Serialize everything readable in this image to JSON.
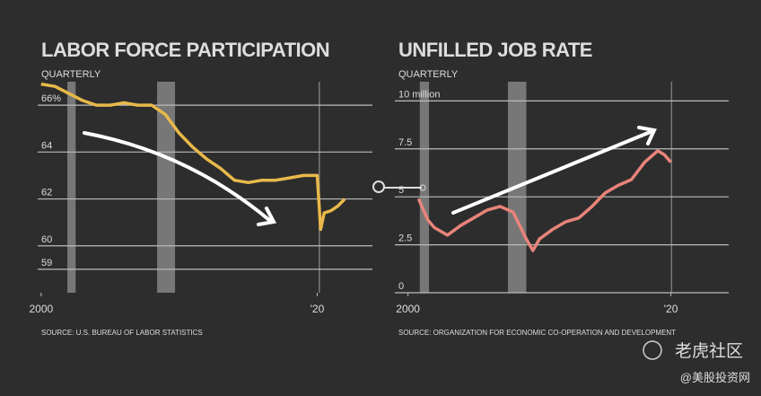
{
  "chart_data": [
    {
      "type": "line",
      "title": "LABOR FORCE PARTICIPATION",
      "subtitle": "QUARTERLY",
      "source": "SOURCE: U.S. BUREAU OF LABOR STATISTICS",
      "x": [
        2000,
        2001,
        2002,
        2003,
        2004,
        2005,
        2006,
        2007,
        2008,
        2009,
        2010,
        2011,
        2012,
        2013,
        2014,
        2015,
        2016,
        2017,
        2018,
        2019,
        2020,
        2020.25,
        2020.5,
        2021,
        2021.5,
        2022
      ],
      "series": [
        {
          "name": "Labor force participation",
          "color": "#e8b94a",
          "values": [
            66.9,
            66.8,
            66.5,
            66.2,
            66.0,
            66.0,
            66.1,
            66.0,
            66.0,
            65.6,
            64.8,
            64.2,
            63.7,
            63.3,
            62.8,
            62.7,
            62.8,
            62.8,
            62.9,
            63.0,
            63.0,
            60.7,
            61.4,
            61.5,
            61.7,
            62.0
          ]
        }
      ],
      "recessions": [
        [
          2001.9,
          2002.5
        ],
        [
          2008.4,
          2009.7
        ],
        [
          2020.1,
          2020.2
        ]
      ],
      "xlim": [
        1999.75,
        2024
      ],
      "xticks": [
        2000,
        {
          "value": 2020,
          "label": "'20"
        }
      ],
      "ylim": [
        58,
        67
      ],
      "yticks": [
        59,
        60,
        62,
        64,
        {
          "value": 66,
          "label": "66%"
        }
      ],
      "grid": true
    },
    {
      "type": "line",
      "title": "UNFILLED JOB RATE",
      "subtitle": "QUARTERLY",
      "source": "SOURCE: ORGANIZATION FOR ECONOMIC CO-OPERATION AND DEVELOPMENT",
      "x": [
        2000.8,
        2001.5,
        2002,
        2003,
        2004,
        2005,
        2006,
        2007,
        2008,
        2009,
        2009.5,
        2010,
        2011,
        2012,
        2013,
        2014,
        2015,
        2016,
        2017,
        2018,
        2019,
        2019.5,
        2020
      ],
      "series": [
        {
          "name": "Unfilled job rate",
          "color": "#e8847a",
          "values": [
            4.9,
            3.8,
            3.4,
            3.0,
            3.5,
            3.9,
            4.3,
            4.5,
            4.2,
            2.8,
            2.2,
            2.8,
            3.3,
            3.7,
            3.9,
            4.5,
            5.2,
            5.6,
            5.9,
            6.8,
            7.4,
            7.2,
            6.8
          ]
        }
      ],
      "recessions": [
        [
          2000.9,
          2001.6
        ],
        [
          2007.6,
          2009.0
        ],
        [
          2020.0,
          2020.1
        ]
      ],
      "xlim": [
        1999,
        2024.4
      ],
      "xticks": [
        2000,
        {
          "value": 2020,
          "label": "'20"
        }
      ],
      "ylim": [
        0,
        11
      ],
      "yticks": [
        0,
        2.5,
        5,
        7.5,
        {
          "value": 10,
          "label": "10 million"
        }
      ],
      "grid": true
    }
  ],
  "watermark": {
    "brand": "老虎社区",
    "handle": "@美股投资网"
  }
}
